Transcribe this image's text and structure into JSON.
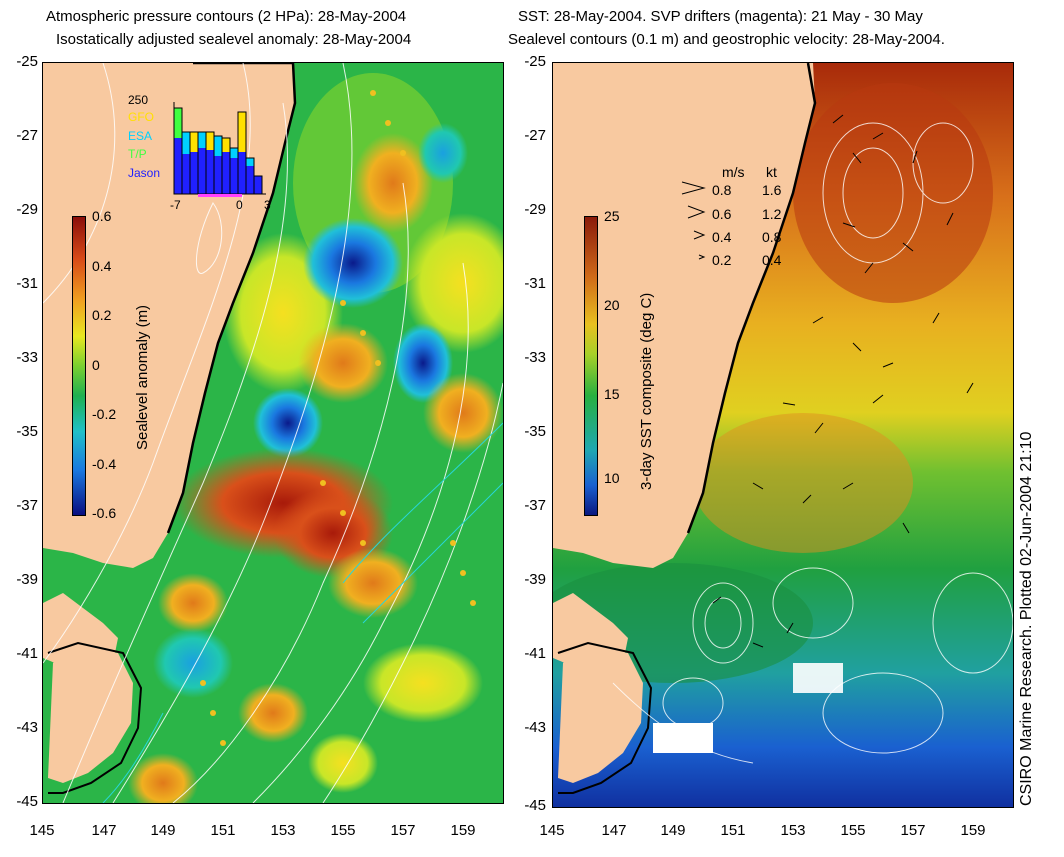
{
  "left": {
    "title1": "Atmospheric pressure contours (2 HPa): 28-May-2004",
    "title2": "Isostatically adjusted sealevel anomaly: 28-May-2004",
    "colorbar": {
      "label": "Sealevel anomaly (m)",
      "ticks": [
        "0.6",
        "0.4",
        "0.2",
        "0",
        "-0.2",
        "-0.4",
        "-0.6"
      ]
    },
    "histogram": {
      "y_label": "250",
      "satellites": [
        "GFO",
        "ESA",
        "T/P",
        "Jason"
      ],
      "sat_colors": [
        "#ffe000",
        "#00d0ff",
        "#40ff40",
        "#2020ff"
      ],
      "x_ticks": [
        "-7",
        "0",
        "3"
      ]
    }
  },
  "right": {
    "title1": "SST: 28-May-2004. SVP drifters (magenta): 21 May - 30 May",
    "title2": "Sealevel contours (0.1 m) and geostrophic velocity: 28-May-2004.",
    "colorbar": {
      "label": "3-day SST composite (deg C)",
      "ticks": [
        "25",
        "20",
        "15",
        "10"
      ]
    },
    "velocity_legend": {
      "header_ms": "m/s",
      "header_kt": "kt",
      "rows": [
        {
          "ms": "0.8",
          "kt": "1.6"
        },
        {
          "ms": "0.6",
          "kt": "1.2"
        },
        {
          "ms": "0.4",
          "kt": "0.8"
        },
        {
          "ms": "0.2",
          "kt": "0.4"
        }
      ]
    }
  },
  "y_ticks": [
    "-25",
    "-27",
    "-29",
    "-31",
    "-33",
    "-35",
    "-37",
    "-39",
    "-41",
    "-43",
    "-45"
  ],
  "x_ticks": [
    "145",
    "147",
    "149",
    "151",
    "153",
    "155",
    "157",
    "159"
  ],
  "credit": "CSIRO Marine Research. Plotted 02-Jun-2004 21:10"
}
